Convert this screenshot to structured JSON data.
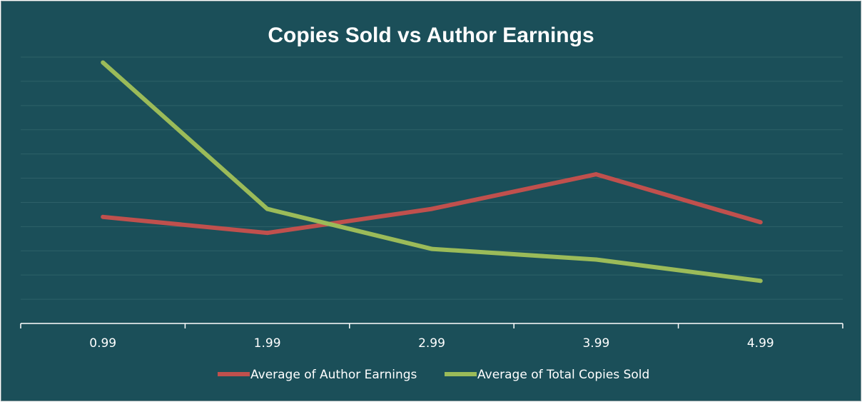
{
  "chart_data": {
    "type": "line",
    "title": "Copies Sold vs Author Earnings",
    "xlabel": "",
    "ylabel": "",
    "categories": [
      "0.99",
      "1.99",
      "2.99",
      "3.99",
      "4.99"
    ],
    "ylim": [
      0,
      100
    ],
    "grid": true,
    "legend_position": "bottom",
    "series": [
      {
        "name": "Average of Author Earnings",
        "color": "#c0504d",
        "values": [
          40,
          34,
          43,
          56,
          38
        ]
      },
      {
        "name": "Average of Total Copies Sold",
        "color": "#9bbb59",
        "values": [
          98,
          43,
          28,
          24,
          16
        ]
      }
    ]
  },
  "colors": {
    "background": "#1b4f59",
    "grid": "#2d6068",
    "axis": "#ffffff"
  }
}
